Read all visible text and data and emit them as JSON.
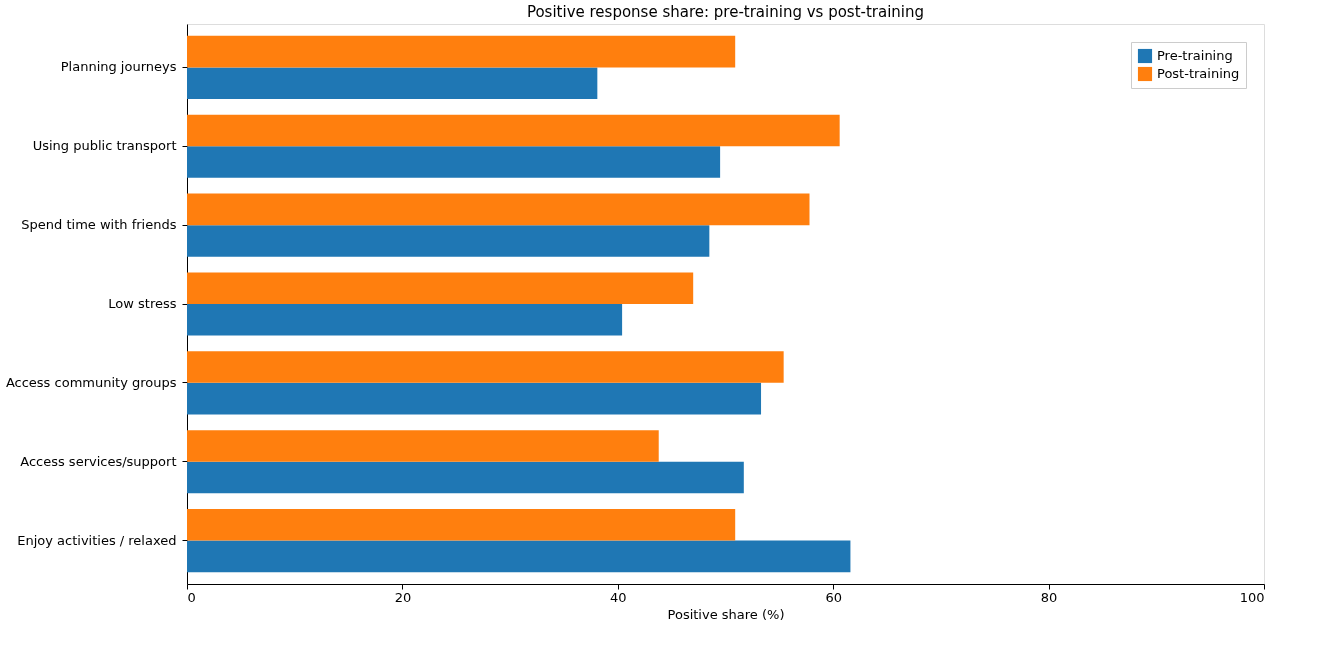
{
  "chart_data": {
    "type": "bar",
    "orientation": "horizontal",
    "title": "Positive response share: pre-training vs post-training",
    "xlabel": "Positive share (%)",
    "categories": [
      "Planning journeys",
      "Using public transport",
      "Spend time with friends",
      "Low stress",
      "Access community groups",
      "Access services/support",
      "Enjoy activities / relaxed"
    ],
    "series": [
      {
        "name": "Pre-training",
        "color": "#1f77b4",
        "values": [
          38.1,
          49.5,
          48.5,
          40.4,
          53.3,
          51.7,
          61.6
        ]
      },
      {
        "name": "Post-training",
        "color": "#ff7f0e",
        "values": [
          50.9,
          60.6,
          57.8,
          47.0,
          55.4,
          43.8,
          50.9
        ]
      }
    ],
    "xlim": [
      0,
      100
    ],
    "xticks": [
      0,
      20,
      40,
      60,
      80,
      100
    ],
    "grid": false,
    "legend": "top right"
  }
}
